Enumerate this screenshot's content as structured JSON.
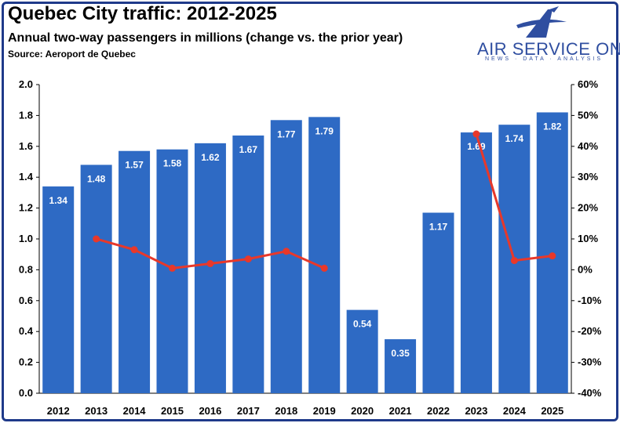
{
  "chart_data": {
    "type": "bar",
    "title": "Quebec City traffic: 2012-2025",
    "subtitle": "Annual two-way passengers in millions (change vs. the prior year)",
    "source": "Source: Aeroport de Quebec",
    "categories": [
      "2012",
      "2013",
      "2014",
      "2015",
      "2016",
      "2017",
      "2018",
      "2019",
      "2020",
      "2021",
      "2022",
      "2023",
      "2024",
      "2025"
    ],
    "series": [
      {
        "type": "bar",
        "axis": "left",
        "values": [
          1.34,
          1.48,
          1.57,
          1.58,
          1.62,
          1.67,
          1.77,
          1.79,
          0.54,
          0.35,
          1.17,
          1.69,
          1.74,
          1.82
        ],
        "labels": [
          "1.34",
          "1.48",
          "1.57",
          "1.58",
          "1.62",
          "1.67",
          "1.77",
          "1.79",
          "0.54",
          "0.35",
          "1.17",
          "1.69",
          "1.74",
          "1.82"
        ],
        "color": "#2e6ac4"
      },
      {
        "type": "line",
        "axis": "right",
        "values": [
          null,
          10.0,
          6.5,
          0.5,
          2.0,
          3.5,
          6.0,
          0.5,
          null,
          null,
          null,
          44.0,
          3.0,
          4.5
        ],
        "color": "#e8382a"
      }
    ],
    "y_left": {
      "range": [
        0,
        2.0
      ],
      "ticks": [
        "0.0",
        "0.2",
        "0.4",
        "0.6",
        "0.8",
        "1.0",
        "1.2",
        "1.4",
        "1.6",
        "1.8",
        "2.0"
      ]
    },
    "y_right": {
      "range": [
        -40,
        60
      ],
      "ticks": [
        "-40%",
        "-30%",
        "-20%",
        "-10%",
        "0%",
        "10%",
        "20%",
        "30%",
        "40%",
        "50%",
        "60%"
      ]
    },
    "grid": false
  },
  "logo": {
    "name": "AIR SERVICE ONE",
    "tagline": "NEWS · DATA · ANALYSIS",
    "color": "#2f4ea0"
  }
}
